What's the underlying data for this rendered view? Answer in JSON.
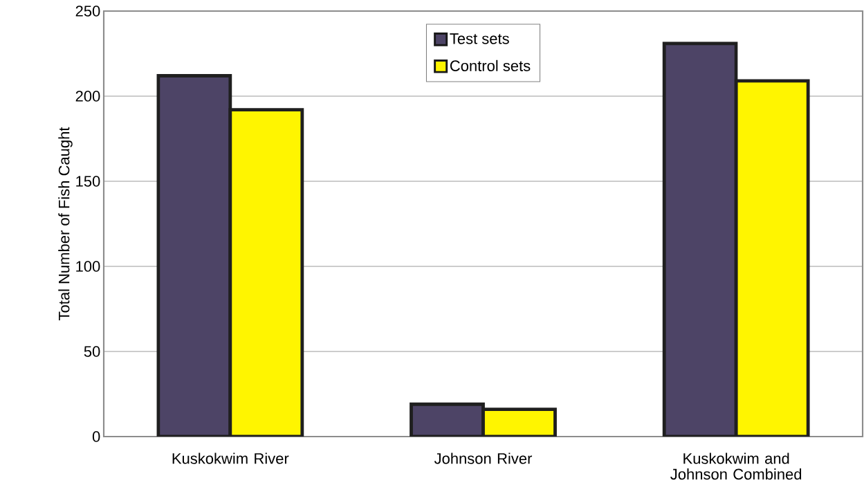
{
  "chart_data": {
    "type": "bar",
    "ylabel": "Total Number of Fish Caught",
    "categories": [
      "Kuskokwim River",
      "Johnson River",
      "Kuskokwim and Johnson Combined"
    ],
    "series": [
      {
        "name": "Test sets",
        "color": "#4d4466",
        "values": [
          212,
          19,
          231
        ]
      },
      {
        "name": "Control sets",
        "color": "#fff500",
        "values": [
          192,
          16,
          209
        ]
      }
    ],
    "ylim": [
      0,
      250
    ],
    "yticks": [
      0,
      50,
      100,
      150,
      200,
      250
    ],
    "grid": "y",
    "legend": "top"
  }
}
